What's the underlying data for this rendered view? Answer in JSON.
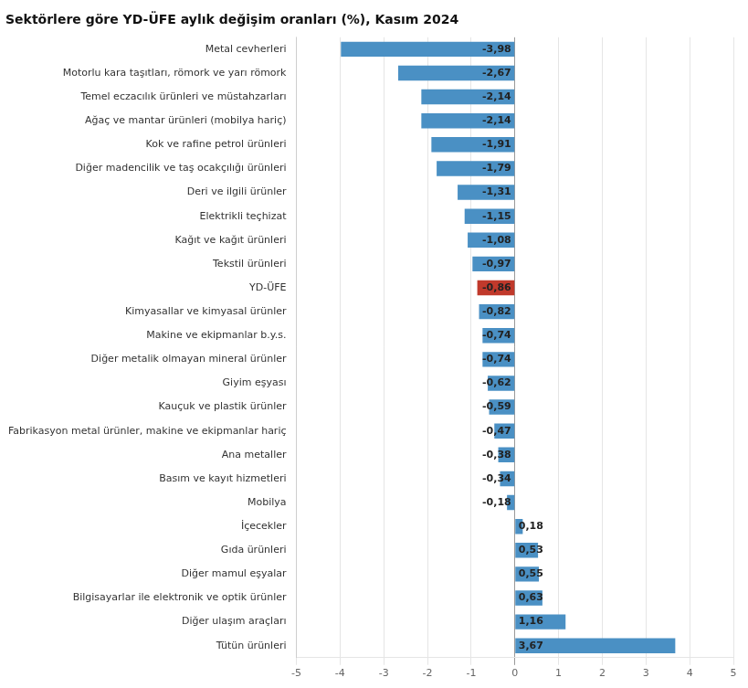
{
  "chart_data": {
    "type": "bar",
    "orientation": "horizontal",
    "title": "Sektörlere göre YD-ÜFE aylık değişim oranları (%), Kasım 2024",
    "categories": [
      "Metal cevherleri",
      "Motorlu kara taşıtları, römork ve yarı römork",
      "Temel eczacılık ürünleri ve müstahzarları",
      "Ağaç ve mantar ürünleri (mobilya hariç)",
      "Kok ve rafine petrol ürünleri",
      "Diğer madencilik ve taş ocakçılığı ürünleri",
      "Deri ve ilgili ürünler",
      "Elektrikli teçhizat",
      "Kağıt ve kağıt ürünleri",
      "Tekstil ürünleri",
      "YD-ÜFE",
      "Kimyasallar ve kimyasal ürünler",
      "Makine ve ekipmanlar b.y.s.",
      "Diğer metalik olmayan mineral ürünler",
      "Giyim eşyası",
      "Kauçuk ve plastik ürünler",
      "Fabrikasyon metal ürünler, makine ve ekipmanlar hariç",
      "Ana metaller",
      "Basım ve kayıt hizmetleri",
      "Mobilya",
      "İçecekler",
      "Gıda ürünleri",
      "Diğer mamul eşyalar",
      "Bilgisayarlar ile elektronik ve optik ürünler",
      "Diğer ulaşım araçları",
      "Tütün ürünleri"
    ],
    "values": [
      -3.98,
      -2.67,
      -2.14,
      -2.14,
      -1.91,
      -1.79,
      -1.31,
      -1.15,
      -1.08,
      -0.97,
      -0.86,
      -0.82,
      -0.74,
      -0.74,
      -0.62,
      -0.59,
      -0.47,
      -0.38,
      -0.34,
      -0.18,
      0.18,
      0.53,
      0.55,
      0.63,
      1.16,
      3.67
    ],
    "value_labels": [
      "-3,98",
      "-2,67",
      "-2,14",
      "-2,14",
      "-1,91",
      "-1,79",
      "-1,31",
      "-1,15",
      "-1,08",
      "-0,97",
      "-0,86",
      "-0,82",
      "-0,74",
      "-0,74",
      "-0,62",
      "-0,59",
      "-0,47",
      "-0,38",
      "-0,34",
      "-0,18",
      "0,18",
      "0,53",
      "0,55",
      "0,63",
      "1,16",
      "3,67"
    ],
    "data_labels": true,
    "colors": [
      "#4A90C4",
      "#4A90C4",
      "#4A90C4",
      "#4A90C4",
      "#4A90C4",
      "#4A90C4",
      "#4A90C4",
      "#4A90C4",
      "#4A90C4",
      "#4A90C4",
      "#C0392B",
      "#4A90C4",
      "#4A90C4",
      "#4A90C4",
      "#4A90C4",
      "#4A90C4",
      "#4A90C4",
      "#4A90C4",
      "#4A90C4",
      "#4A90C4",
      "#4A90C4",
      "#4A90C4",
      "#4A90C4",
      "#4A90C4",
      "#4A90C4",
      "#4A90C4"
    ],
    "xlim": [
      -5,
      5
    ],
    "xticks": [
      -5,
      -4,
      -3,
      -2,
      -1,
      0,
      1,
      2,
      3,
      4,
      5
    ],
    "grid": true
  }
}
